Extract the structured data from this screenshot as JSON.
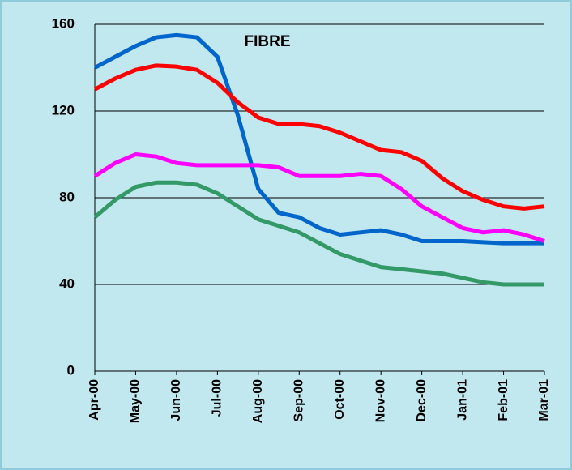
{
  "chart_data": {
    "type": "line",
    "title": "FIBRE",
    "x": [
      0,
      0.5,
      1,
      1.5,
      2,
      2.5,
      3,
      3.5,
      4,
      4.5,
      5,
      5.5,
      6,
      6.5,
      7,
      7.5,
      8,
      8.5,
      9,
      9.5,
      10,
      10.5,
      11
    ],
    "xlim": [
      0,
      11
    ],
    "xticks": [
      {
        "value": 0,
        "label": "Apr-00"
      },
      {
        "value": 1,
        "label": "May-00"
      },
      {
        "value": 2,
        "label": "Jun-00"
      },
      {
        "value": 3,
        "label": "Jul-00"
      },
      {
        "value": 4,
        "label": "Aug-00"
      },
      {
        "value": 5,
        "label": "Sep-00"
      },
      {
        "value": 6,
        "label": "Oct-00"
      },
      {
        "value": 7,
        "label": "Nov-00"
      },
      {
        "value": 8,
        "label": "Dec-00"
      },
      {
        "value": 9,
        "label": "Jan-01"
      },
      {
        "value": 10,
        "label": "Feb-01"
      },
      {
        "value": 11,
        "label": "Mar-01"
      }
    ],
    "ylim": [
      0,
      160
    ],
    "yticks": [
      0,
      40,
      80,
      120,
      160
    ],
    "grid": true,
    "series": [
      {
        "color": "#0066cc",
        "values": [
          140,
          145,
          150,
          154,
          155,
          154,
          145,
          118,
          84,
          73,
          71,
          66,
          63,
          64,
          65,
          63,
          60,
          60,
          60,
          59.5,
          59,
          59,
          59
        ]
      },
      {
        "color": "#ff0000",
        "values": [
          130,
          135,
          139,
          141,
          140.5,
          139,
          133,
          124,
          117,
          114,
          114,
          113,
          110,
          106,
          102,
          101,
          97,
          89,
          83,
          79,
          76,
          75,
          76
        ]
      },
      {
        "color": "#ff00ff",
        "values": [
          90,
          96,
          100,
          99,
          96,
          95,
          95,
          95,
          95,
          94,
          90,
          90,
          90,
          91,
          90,
          84,
          76,
          71,
          66,
          64,
          65,
          63,
          60
        ]
      },
      {
        "color": "#339966",
        "values": [
          71,
          79,
          85,
          87,
          87,
          86,
          82,
          76,
          70,
          67,
          64,
          59,
          54,
          51,
          48,
          47,
          46,
          45,
          43,
          41,
          40,
          40,
          40
        ]
      }
    ]
  }
}
